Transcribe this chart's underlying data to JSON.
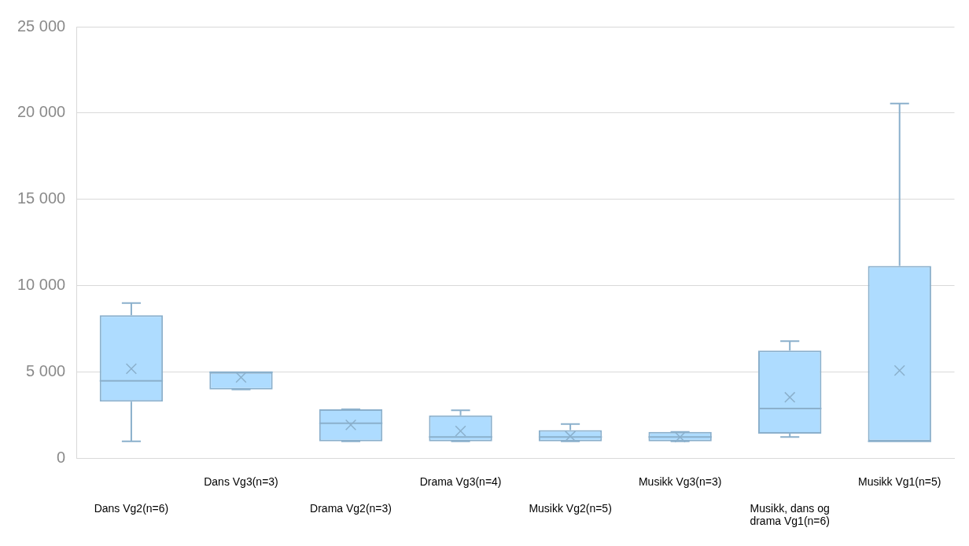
{
  "chart_data": {
    "type": "box",
    "categories": [
      "Dans Vg2(n=6)",
      "Dans Vg3(n=3)",
      "Drama Vg2(n=3)",
      "Drama Vg3(n=4)",
      "Musikk Vg2(n=5)",
      "Musikk Vg3(n=3)",
      "Musikk, dans og drama Vg1(n=6)",
      "Musikk Vg1(n=5)"
    ],
    "series": [
      {
        "color": "#8bb0cc",
        "boxes": [
          {
            "low": 1000,
            "q1": 3300,
            "median": 4500,
            "q3": 8300,
            "high": 9000,
            "mean": 5200
          },
          {
            "low": 4000,
            "q1": 4000,
            "median": 5000,
            "q3": 5000,
            "high": 5000,
            "mean": 4700
          },
          {
            "low": 1000,
            "q1": 1000,
            "median": 2050,
            "q3": 2850,
            "high": 2850,
            "mean": 1950
          },
          {
            "low": 1000,
            "q1": 1000,
            "median": 1250,
            "q3": 2500,
            "high": 2800,
            "mean": 1600
          },
          {
            "low": 1000,
            "q1": 1000,
            "median": 1250,
            "q3": 1650,
            "high": 2000,
            "mean": 1300
          },
          {
            "low": 1000,
            "q1": 1000,
            "median": 1250,
            "q3": 1550,
            "high": 1550,
            "mean": 1250
          },
          {
            "low": 1250,
            "q1": 1450,
            "median": 2900,
            "q3": 6250,
            "high": 6800,
            "mean": 3550
          },
          {
            "low": 1000,
            "q1": 1000,
            "median": 1000,
            "q3": 11150,
            "high": 20550,
            "mean": 5100
          }
        ]
      }
    ],
    "ylim": [
      0,
      25000
    ],
    "yticks": [
      {
        "value": 0,
        "label": "0"
      },
      {
        "value": 5000,
        "label": "5 000"
      },
      {
        "value": 10000,
        "label": "10 000"
      },
      {
        "value": 15000,
        "label": "15 000"
      },
      {
        "value": 20000,
        "label": "20 000"
      },
      {
        "value": 25000,
        "label": "25 000"
      }
    ],
    "grid": "y",
    "legend": false,
    "marker": "cross"
  }
}
